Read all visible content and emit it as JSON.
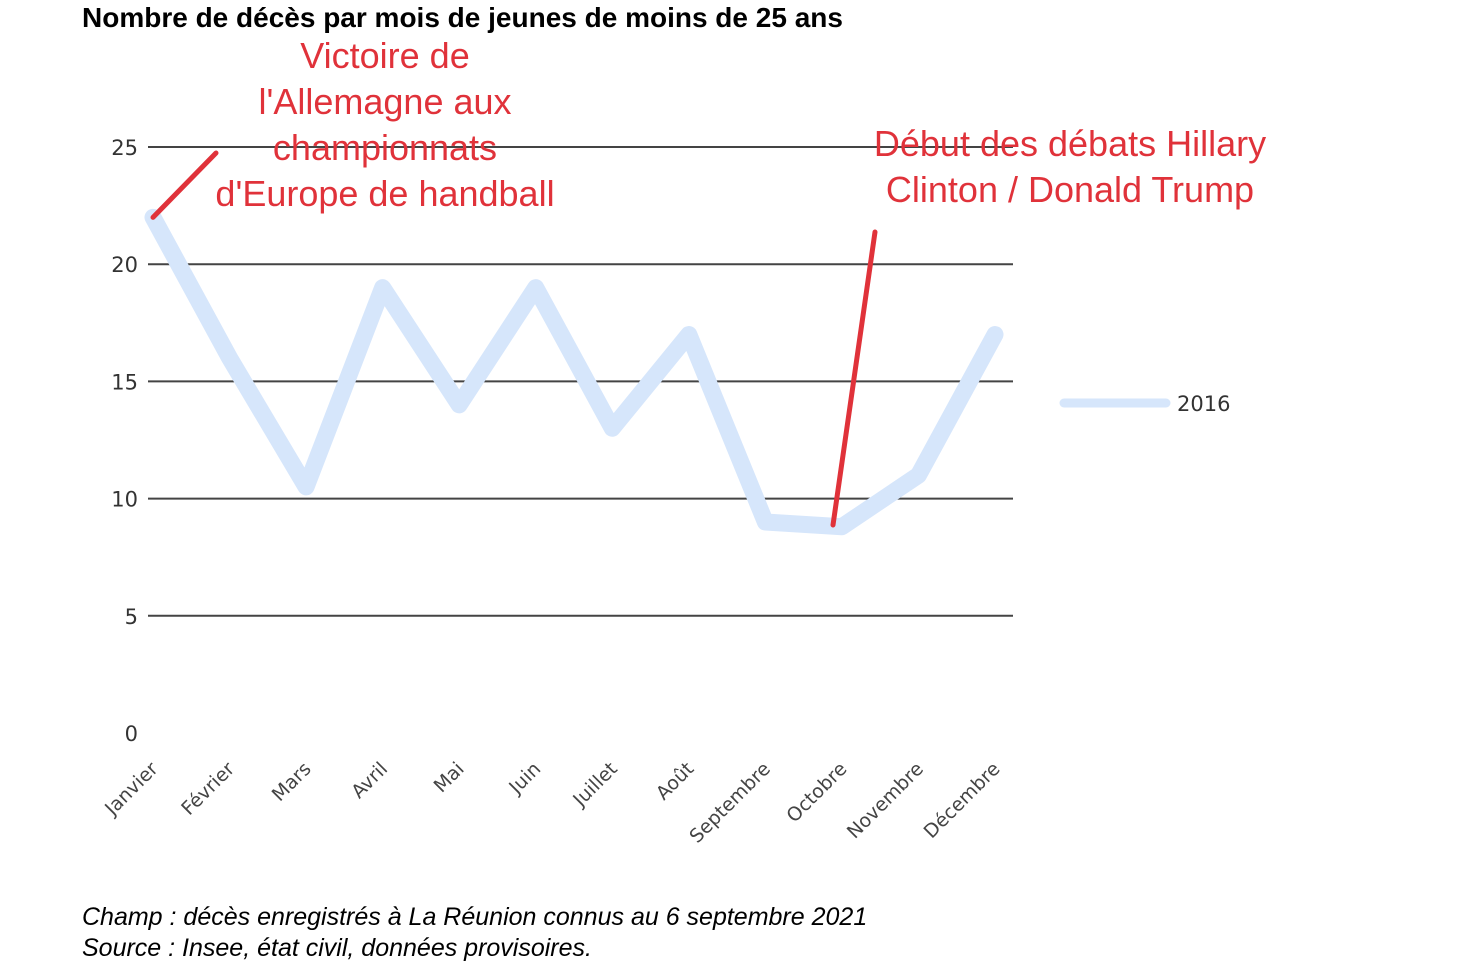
{
  "chart_data": {
    "type": "line",
    "title": "Nombre de décès par mois de jeunes de moins de 25 ans",
    "categories": [
      "Janvier",
      "Février",
      "Mars",
      "Avril",
      "Mai",
      "Juin",
      "Juillet",
      "Août",
      "Septembre",
      "Octobre",
      "Novembre",
      "Décembre"
    ],
    "series": [
      {
        "name": "2016",
        "values": [
          22,
          16,
          10.5,
          19,
          14,
          19,
          13,
          17,
          9,
          8.8,
          11,
          17
        ],
        "color": "#d6e6fb"
      }
    ],
    "yticks": [
      "0",
      "5",
      "10",
      "15",
      "20",
      "25"
    ],
    "ylim": [
      0,
      25
    ],
    "grid": true,
    "legend_position": "right",
    "annotations": [
      {
        "lines": [
          "Victoire de",
          "l'Allemagne aux",
          "championnats",
          "d'Europe de handball"
        ],
        "month": "Janvier",
        "color": "#e0323a"
      },
      {
        "lines": [
          "Début des débats Hillary",
          "Clinton / Donald Trump"
        ],
        "month": "Octobre",
        "color": "#e0323a"
      }
    ]
  },
  "footer": {
    "line1": "Champ : décès enregistrés à La Réunion connus au 6 septembre 2021",
    "line2": "Source : Insee, état civil, données provisoires."
  }
}
